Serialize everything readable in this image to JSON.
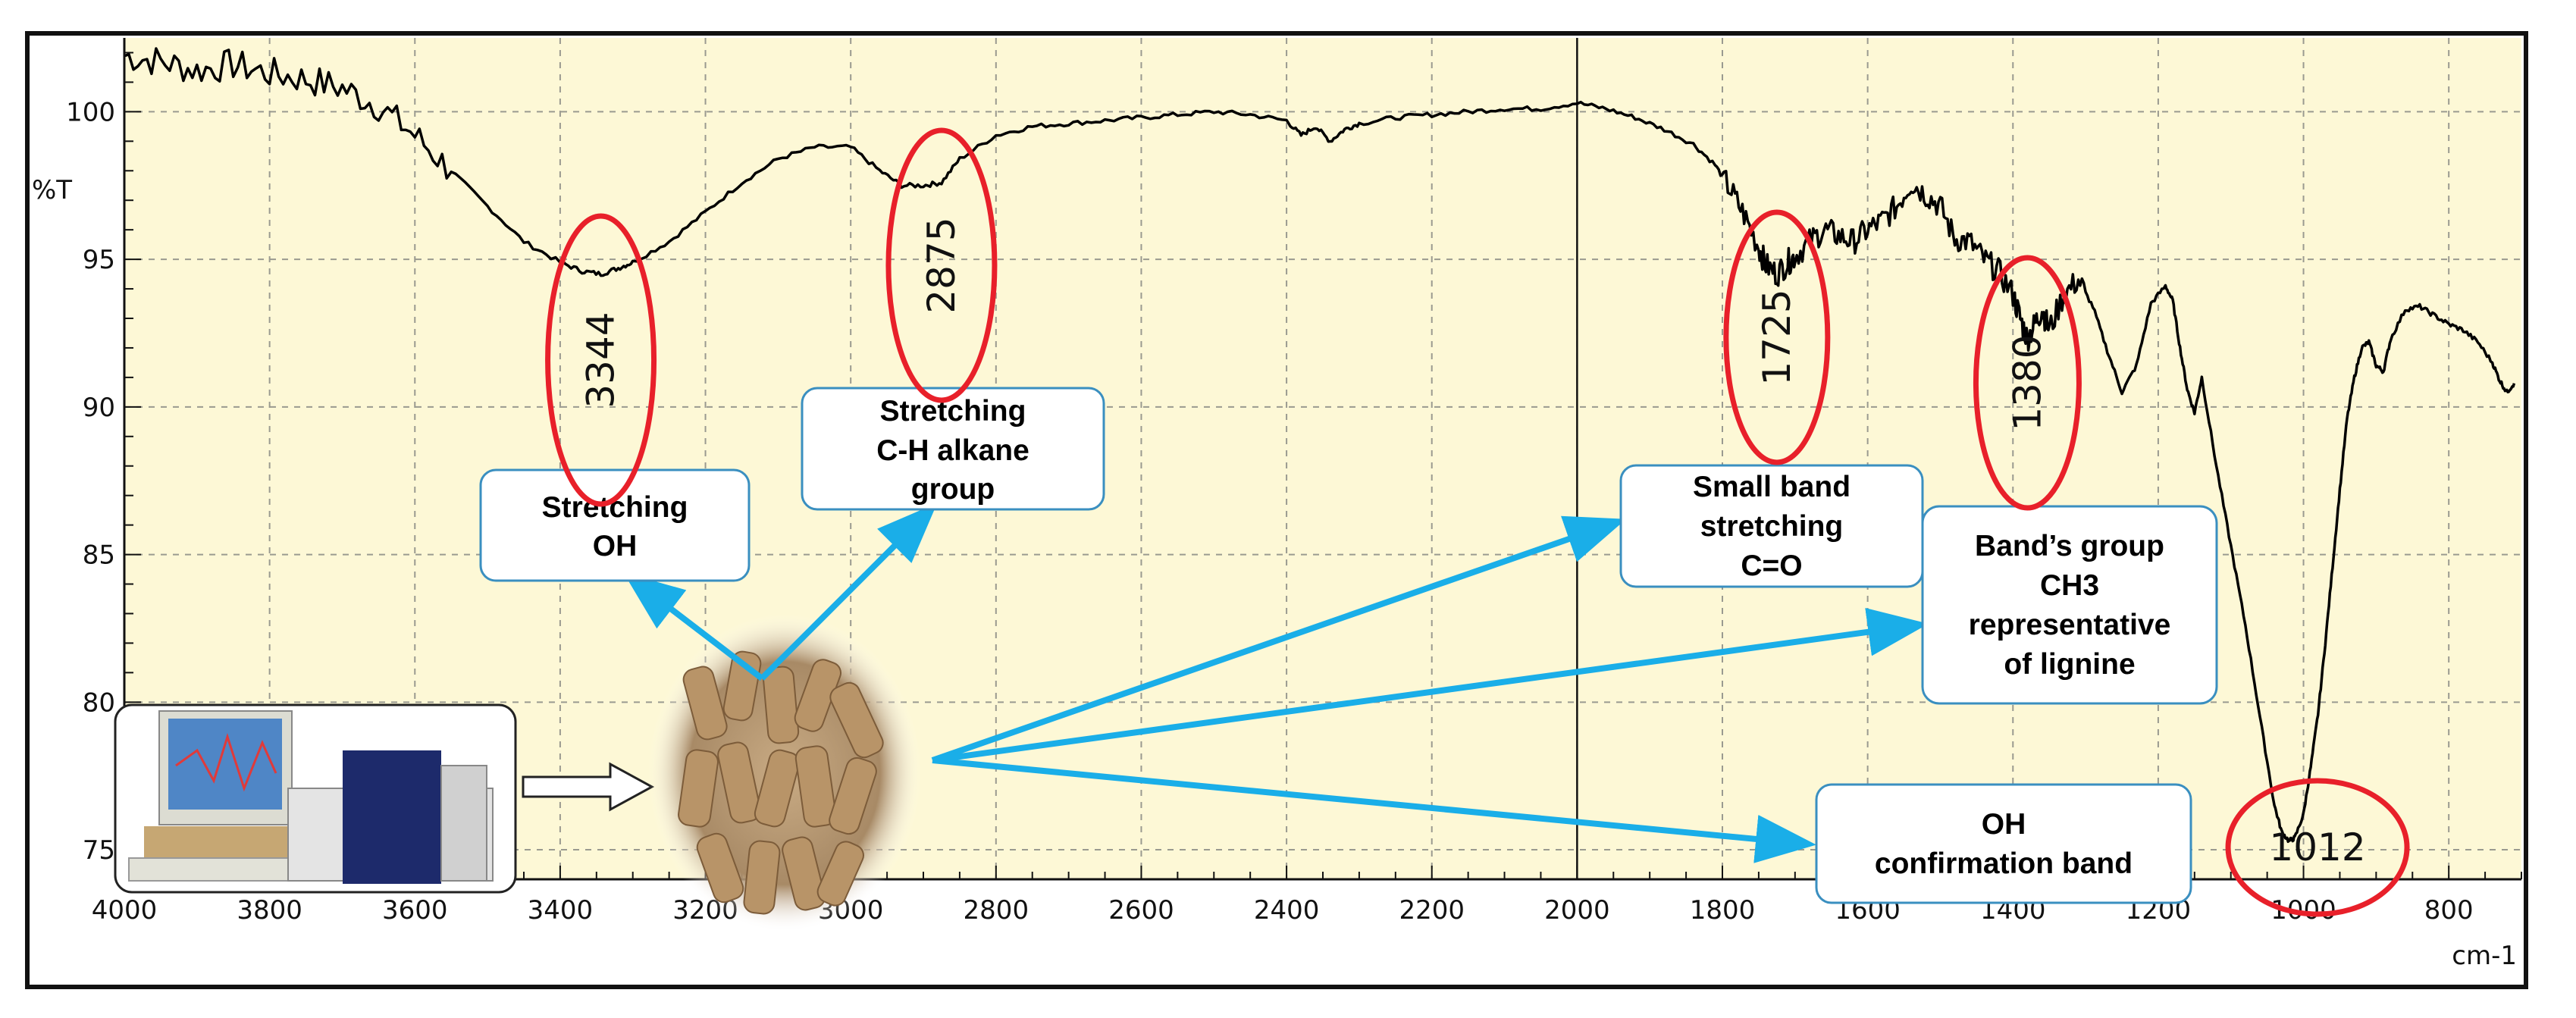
{
  "chart_data": {
    "type": "line",
    "title": "",
    "xlabel": "",
    "ylabel": "%T",
    "x_unit_label": "cm-1",
    "xlim": [
      4000,
      700
    ],
    "ylim": [
      74,
      102.5
    ],
    "x_ticks": [
      "4000",
      "3800",
      "3600",
      "3400",
      "3200",
      "3000",
      "2800",
      "2600",
      "2400",
      "2200",
      "2000",
      "1800",
      "1600",
      "1400",
      "1200",
      "1000",
      "800"
    ],
    "y_ticks": [
      "100",
      "95",
      "90",
      "85",
      "80",
      "75"
    ],
    "grid": true,
    "colors": {
      "background": "#fdf8d6",
      "grid": "#9a9a90",
      "spectrum": "#000000",
      "peak_ellipse": "#e8202a",
      "arrow": "#1aaee8",
      "box_border": "#3a8fc0"
    },
    "series": [
      {
        "name": "",
        "x": [
          4000,
          3950,
          3900,
          3850,
          3800,
          3750,
          3700,
          3650,
          3600,
          3550,
          3500,
          3450,
          3400,
          3370,
          3344,
          3320,
          3300,
          3250,
          3200,
          3150,
          3100,
          3050,
          3000,
          2960,
          2930,
          2900,
          2875,
          2850,
          2800,
          2750,
          2700,
          2650,
          2600,
          2550,
          2500,
          2450,
          2400,
          2380,
          2360,
          2340,
          2320,
          2300,
          2250,
          2200,
          2150,
          2100,
          2050,
          2000,
          1960,
          1920,
          1880,
          1840,
          1810,
          1790,
          1770,
          1750,
          1740,
          1725,
          1710,
          1700,
          1680,
          1660,
          1640,
          1620,
          1600,
          1580,
          1560,
          1540,
          1520,
          1500,
          1480,
          1460,
          1440,
          1420,
          1400,
          1390,
          1380,
          1370,
          1360,
          1350,
          1330,
          1310,
          1290,
          1270,
          1250,
          1230,
          1210,
          1190,
          1180,
          1170,
          1160,
          1150,
          1140,
          1120,
          1100,
          1080,
          1060,
          1040,
          1030,
          1020,
          1012,
          1000,
          990,
          980,
          970,
          960,
          950,
          940,
          930,
          920,
          910,
          900,
          890,
          880,
          860,
          840,
          820,
          800,
          780,
          760,
          740,
          730,
          720,
          710
        ],
        "y": [
          101.9,
          101.7,
          101.4,
          101.6,
          101.3,
          101.1,
          100.8,
          100.2,
          99.2,
          98.0,
          96.8,
          95.6,
          94.9,
          94.6,
          94.5,
          94.7,
          94.9,
          95.6,
          96.6,
          97.6,
          98.4,
          98.8,
          98.8,
          98.0,
          97.5,
          97.5,
          97.6,
          98.4,
          99.2,
          99.5,
          99.6,
          99.7,
          99.8,
          99.9,
          100.0,
          99.9,
          99.7,
          99.2,
          99.5,
          99.0,
          99.4,
          99.6,
          99.8,
          99.9,
          100.0,
          100.1,
          100.1,
          100.3,
          100.1,
          99.8,
          99.4,
          98.9,
          98.2,
          97.4,
          96.5,
          95.4,
          94.8,
          94.5,
          94.9,
          95.1,
          95.6,
          96.0,
          95.8,
          95.6,
          96.0,
          96.3,
          96.8,
          97.6,
          97.2,
          96.8,
          95.7,
          95.6,
          95.0,
          94.6,
          93.8,
          93.0,
          92.3,
          92.8,
          93.3,
          92.6,
          93.8,
          94.3,
          93.4,
          91.9,
          90.5,
          91.4,
          93.5,
          94.1,
          93.6,
          92.0,
          90.6,
          89.8,
          91.0,
          88.0,
          85.3,
          82.6,
          79.5,
          76.5,
          75.6,
          75.3,
          75.4,
          76.2,
          77.8,
          79.6,
          82.0,
          84.6,
          87.2,
          89.6,
          91.0,
          92.0,
          92.2,
          91.4,
          91.2,
          92.3,
          93.3,
          93.4,
          93.1,
          92.8,
          92.6,
          92.2,
          91.5,
          90.9,
          90.5,
          90.8
        ]
      }
    ],
    "peaks": [
      {
        "label": "3344",
        "x": 3344
      },
      {
        "label": "2875",
        "x": 2875
      },
      {
        "label": "1725",
        "x": 1725
      },
      {
        "label": "1380",
        "x": 1380
      },
      {
        "label": "1012",
        "x": 1012
      }
    ],
    "annotations": [
      {
        "lines": [
          "Stretching",
          "OH"
        ]
      },
      {
        "lines": [
          "Stretching",
          "C-H alkane",
          "group"
        ]
      },
      {
        "lines": [
          "Small band",
          "stretching",
          "C=O"
        ]
      },
      {
        "lines": [
          "Band’s group",
          "CH3",
          "representative",
          "of lignine"
        ]
      },
      {
        "lines": [
          "OH",
          "confirmation band"
        ]
      }
    ]
  }
}
